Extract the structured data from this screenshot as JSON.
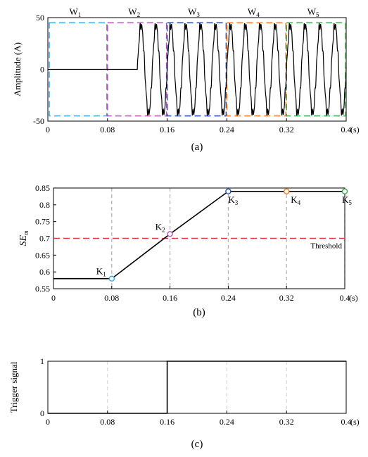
{
  "colors": {
    "w1": "#3aa6dd",
    "w2": "#b054b6",
    "w3": "#1f4ea8",
    "w4": "#ee7b2c",
    "w5": "#3ea64a",
    "threshold": "#e23b3b",
    "grid": "#b0b0b0",
    "line": "#000000"
  },
  "chart_data": [
    {
      "type": "line",
      "panel_label": "(a)",
      "ylabel": "Amplitude (A)",
      "x_unit": "(s)",
      "xlim": [
        0,
        0.4
      ],
      "ylim": [
        -50,
        50
      ],
      "xticks": [
        0,
        0.08,
        0.16,
        0.24,
        0.32,
        0.4
      ],
      "xtick_labels": [
        "0",
        "0.08",
        "0.16",
        "0.24",
        "0.32",
        "0.4"
      ],
      "yticks": [
        -50,
        0,
        50
      ],
      "ytick_labels": [
        "-50",
        "0",
        "50"
      ],
      "windows": [
        {
          "label": "W",
          "sub": "1",
          "x0": 0.0,
          "x1": 0.08,
          "color_key": "w1"
        },
        {
          "label": "W",
          "sub": "2",
          "x0": 0.08,
          "x1": 0.16,
          "color_key": "w2"
        },
        {
          "label": "W",
          "sub": "3",
          "x0": 0.16,
          "x1": 0.24,
          "color_key": "w3"
        },
        {
          "label": "W",
          "sub": "4",
          "x0": 0.24,
          "x1": 0.32,
          "color_key": "w4"
        },
        {
          "label": "W",
          "sub": "5",
          "x0": 0.32,
          "x1": 0.4,
          "color_key": "w5"
        }
      ],
      "window_ylim": [
        -45,
        45
      ],
      "signal": {
        "zero_until": 0.12,
        "amplitude": 43,
        "frequency_hz": 50
      }
    },
    {
      "type": "line",
      "panel_label": "(b)",
      "ylabel": "SE",
      "ylabel_sub": "m",
      "x_unit": "(s)",
      "xlim": [
        0,
        0.4
      ],
      "ylim": [
        0.55,
        0.85
      ],
      "xticks": [
        0,
        0.08,
        0.16,
        0.24,
        0.32,
        0.4
      ],
      "xtick_labels": [
        "0",
        "0.08",
        "0.16",
        "0.24",
        "0.32",
        "0.4"
      ],
      "yticks": [
        0.55,
        0.6,
        0.65,
        0.7,
        0.75,
        0.8,
        0.85
      ],
      "ytick_labels": [
        "0.55",
        "0.6",
        "0.65",
        "0.7",
        "0.75",
        "0.8",
        "0.85"
      ],
      "x": [
        0,
        0.08,
        0.16,
        0.24,
        0.32,
        0.4
      ],
      "y": [
        0.58,
        0.58,
        0.713,
        0.84,
        0.84,
        0.84
      ],
      "markers": [
        {
          "label": "K",
          "sub": "1",
          "x": 0.08,
          "y": 0.58,
          "color_key": "w1"
        },
        {
          "label": "K",
          "sub": "2",
          "x": 0.16,
          "y": 0.713,
          "color_key": "w2"
        },
        {
          "label": "K",
          "sub": "3",
          "x": 0.24,
          "y": 0.84,
          "color_key": "w3"
        },
        {
          "label": "K",
          "sub": "4",
          "x": 0.32,
          "y": 0.84,
          "color_key": "w4"
        },
        {
          "label": "K",
          "sub": "5",
          "x": 0.4,
          "y": 0.84,
          "color_key": "w5"
        }
      ],
      "threshold": {
        "value": 0.7,
        "label": "Threshold"
      }
    },
    {
      "type": "line",
      "panel_label": "(c)",
      "ylabel": "Trigger signal",
      "x_unit": "(s)",
      "xlim": [
        0,
        0.4
      ],
      "ylim": [
        0,
        1
      ],
      "xticks": [
        0,
        0.08,
        0.16,
        0.24,
        0.32,
        0.4
      ],
      "xtick_labels": [
        "0",
        "0.08",
        "0.16",
        "0.24",
        "0.32",
        "0.4"
      ],
      "yticks": [
        0,
        1
      ],
      "ytick_labels": [
        "0",
        "1"
      ],
      "x": [
        0,
        0.16,
        0.16,
        0.4
      ],
      "y": [
        0,
        0,
        1,
        1
      ]
    }
  ]
}
